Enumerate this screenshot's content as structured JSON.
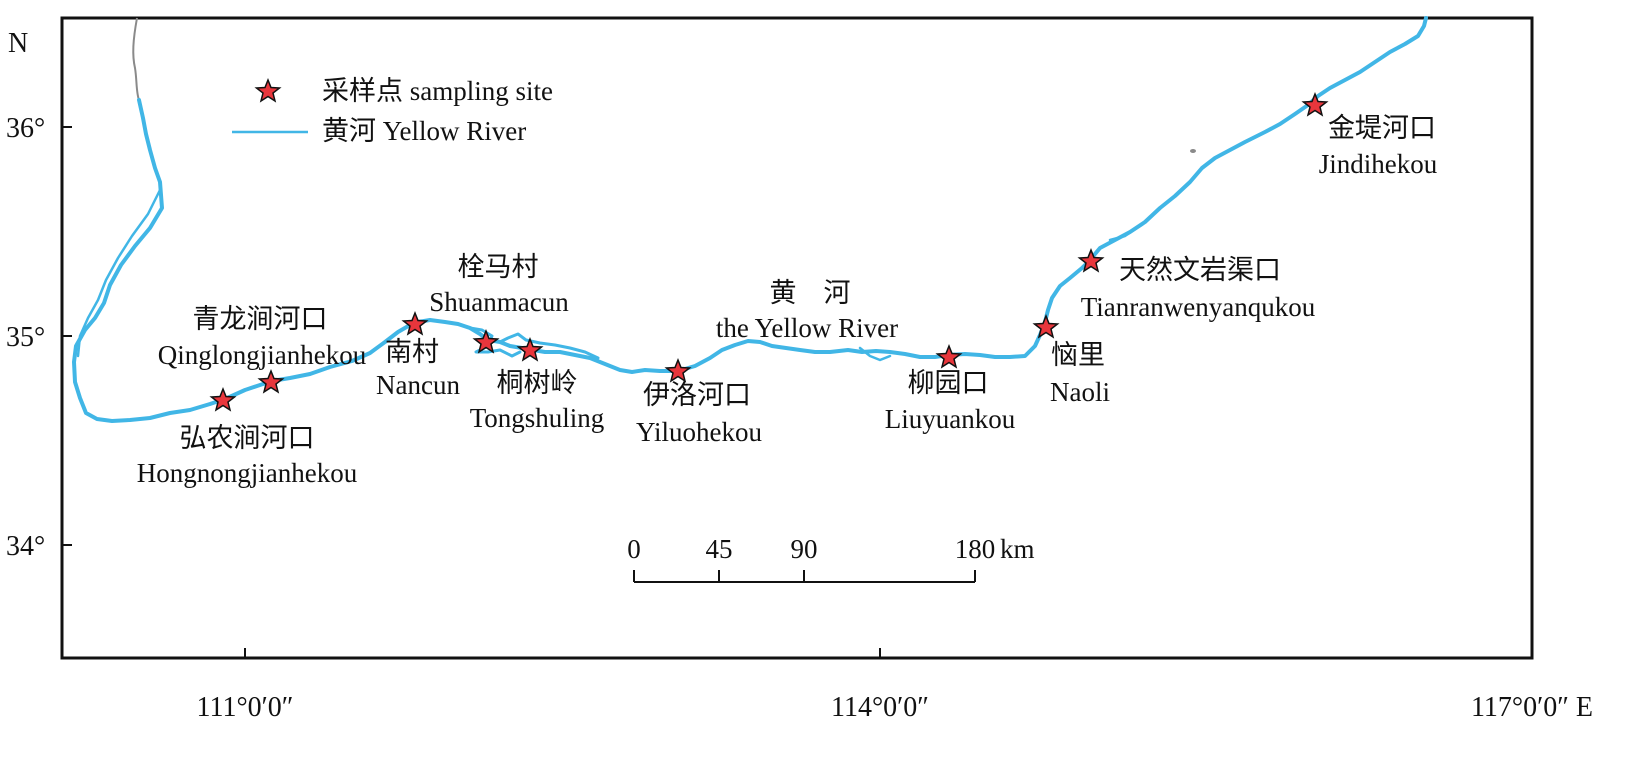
{
  "frame": {
    "north_label": "N"
  },
  "lat_ticks": [
    {
      "label": "36°"
    },
    {
      "label": "35°"
    },
    {
      "label": "34°"
    }
  ],
  "lon_ticks": [
    {
      "label": "111°0′0″"
    },
    {
      "label": "114°0′0″"
    },
    {
      "label": "117°0′0″ E"
    }
  ],
  "legend": {
    "site_label": "采样点 sampling site",
    "river_label": "黄河 Yellow River"
  },
  "river_label": {
    "zh": "黄　河",
    "en": "the Yellow River"
  },
  "sites": [
    {
      "zh": "弘农涧河口",
      "en": "Hongnongjianhekou"
    },
    {
      "zh": "青龙涧河口",
      "en": "Qinglongjianhekou"
    },
    {
      "zh": "栓马村",
      "en": "Shuanmacun"
    },
    {
      "zh": "南村",
      "en": "Nancun"
    },
    {
      "zh": "桐树岭",
      "en": "Tongshuling"
    },
    {
      "zh": "伊洛河口",
      "en": "Yiluohekou"
    },
    {
      "zh": "柳园口",
      "en": "Liuyuankou"
    },
    {
      "zh": "恼里",
      "en": "Naoli"
    },
    {
      "zh": "天然文岩渠口",
      "en": "Tianranwenyanqukou"
    },
    {
      "zh": "金堤河口",
      "en": "Jindihekou"
    }
  ],
  "scale_bar": {
    "labels": [
      "0",
      "45",
      "90",
      "180"
    ],
    "unit": "km"
  },
  "colors": {
    "river": "#41b6e6",
    "site_fill": "#e8363c",
    "site_stroke": "#111111",
    "frame": "#111111"
  }
}
